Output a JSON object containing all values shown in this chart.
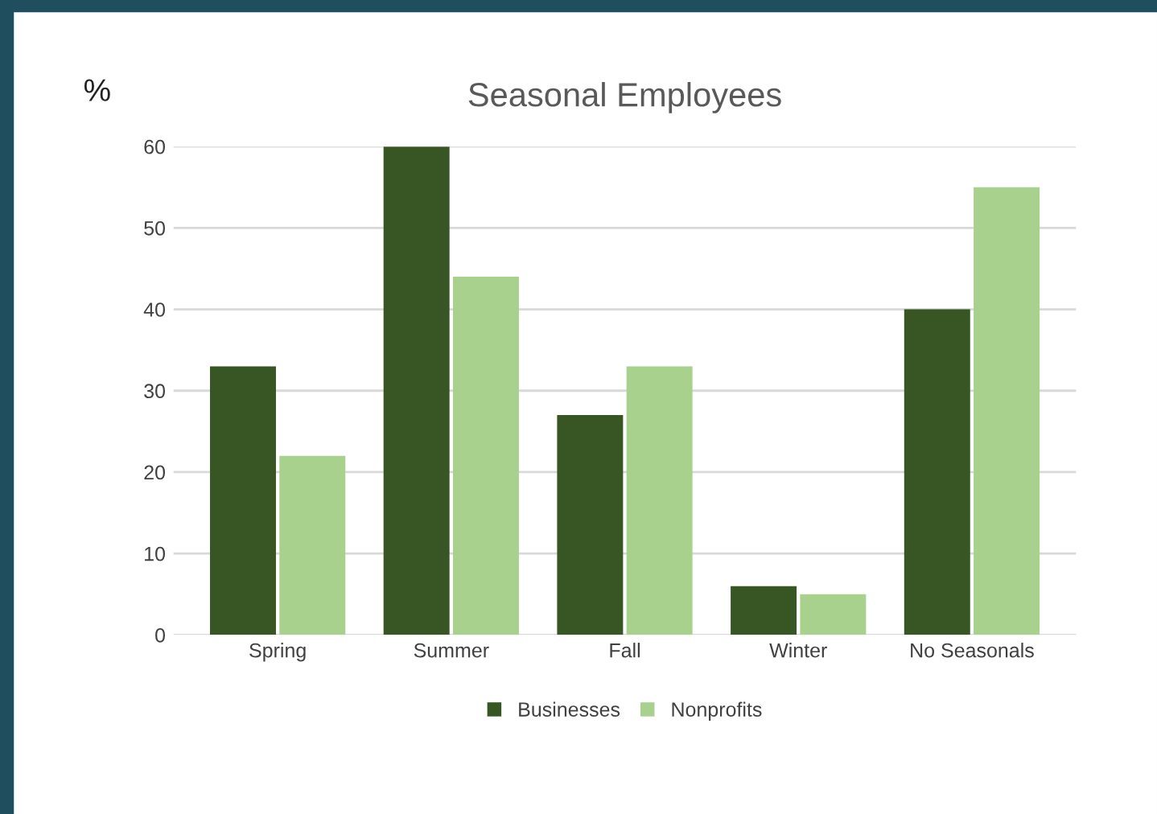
{
  "chart_data": {
    "type": "bar",
    "title": "Seasonal Employees",
    "ylabel": "%",
    "categories": [
      "Spring",
      "Summer",
      "Fall",
      "Winter",
      "No Seasonals"
    ],
    "series": [
      {
        "name": "Businesses",
        "color": "#375623",
        "values": [
          33,
          60,
          27,
          6,
          40
        ]
      },
      {
        "name": "Nonprofits",
        "color": "#a9d18e",
        "values": [
          22,
          44,
          33,
          5,
          55
        ]
      }
    ],
    "ylim": [
      0,
      60
    ],
    "yticks": [
      0,
      10,
      20,
      30,
      40,
      50,
      60
    ],
    "grid": "y",
    "legend": "bottom"
  }
}
